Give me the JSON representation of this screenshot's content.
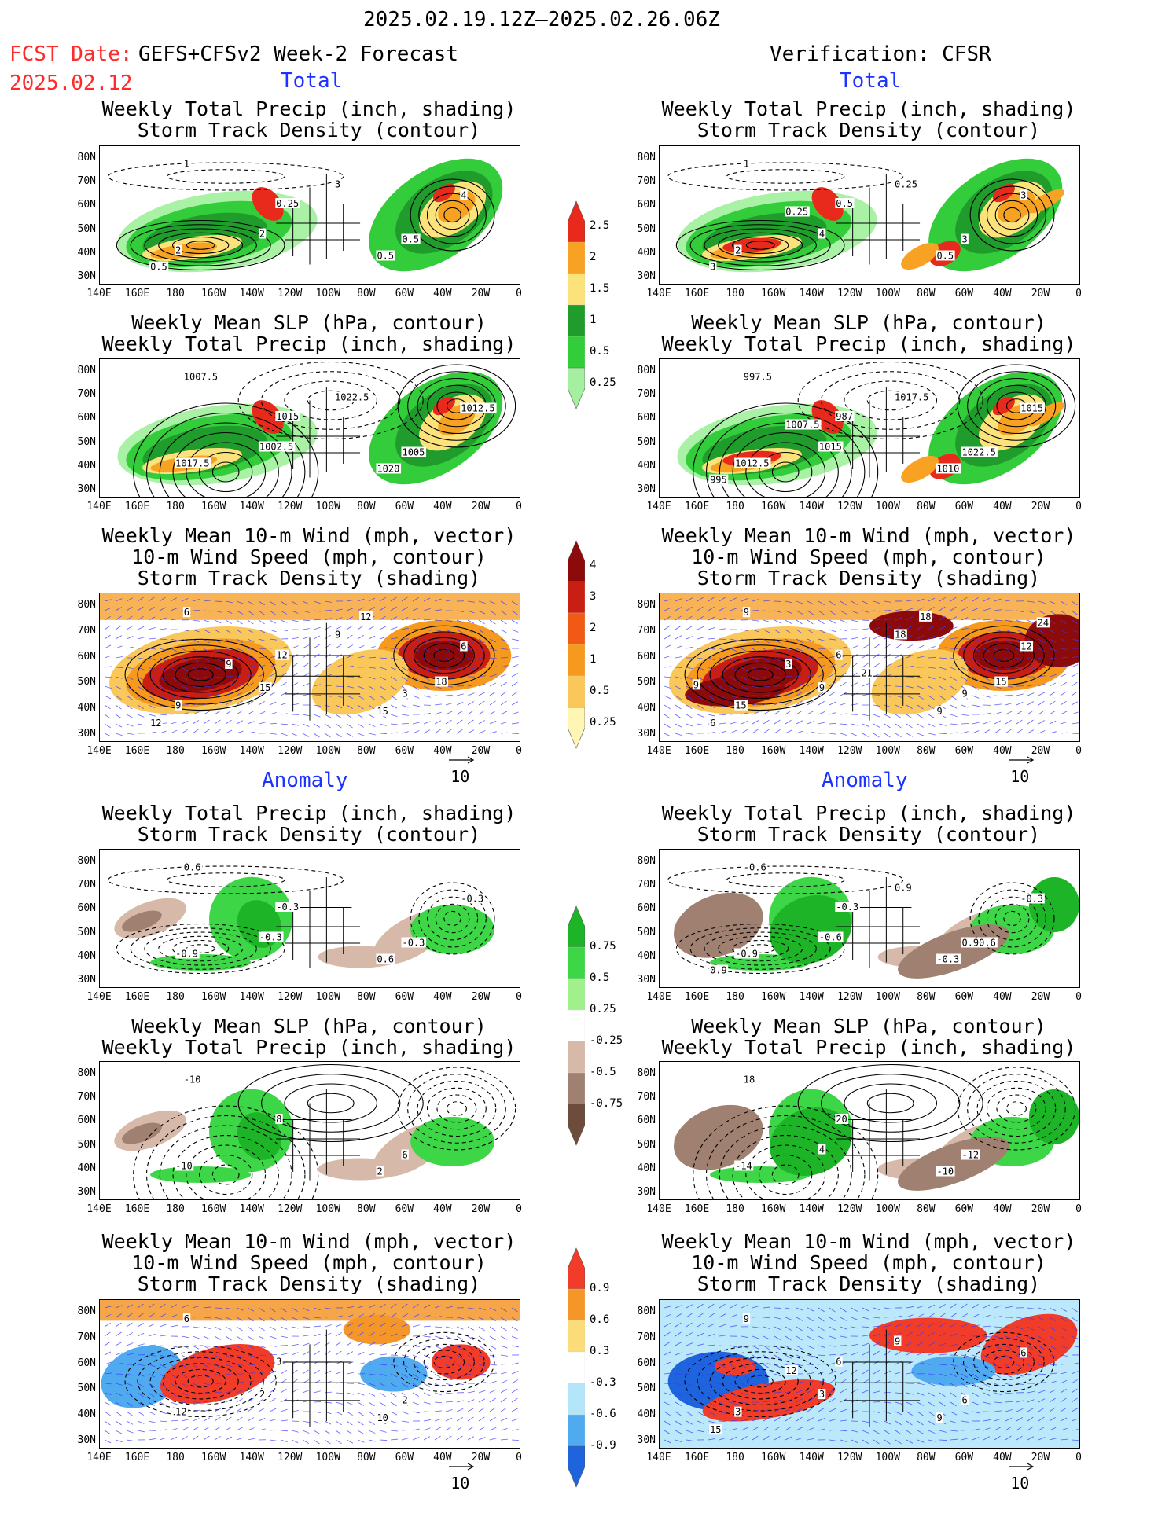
{
  "header": {
    "date_range": "2025.02.19.12Z–2025.02.26.06Z",
    "fcst_label": "FCST Date:",
    "fcst_model": "GEFS+CFSv2 Week-2 Forecast",
    "fcst_date": "2025.02.12",
    "verification": "Verification: CFSR"
  },
  "sections": {
    "total": "Total",
    "anomaly": "Anomaly"
  },
  "titles": {
    "precip_l1": "Weekly Total Precip (inch, shading)",
    "precip_l2": "Storm Track Density (contour)",
    "slp_l1": "Weekly Mean SLP (hPa, contour)",
    "slp_l2": "Weekly Total Precip (inch, shading)",
    "wind_l1": "Weekly Mean 10-m Wind (mph, vector)",
    "wind_l2": "10-m Wind Speed (mph, contour)",
    "wind_l3": "Storm Track Density (shading)"
  },
  "axes": {
    "lat_ticks": [
      "80N",
      "70N",
      "60N",
      "50N",
      "40N",
      "30N"
    ],
    "lon_ticks": [
      "140E",
      "160E",
      "180",
      "160W",
      "140W",
      "120W",
      "100W",
      "80W",
      "60W",
      "40W",
      "20W",
      "0"
    ]
  },
  "vector_ref": "10",
  "colorbars": {
    "precip_total": {
      "labels": [
        "2.5",
        "2",
        "1.5",
        "1",
        "0.5",
        "0.25"
      ],
      "colors": [
        "#e82a1c",
        "#f7a223",
        "#fbe27a",
        "#1f9c2c",
        "#33cc3a",
        "#a4f0a0"
      ]
    },
    "density_total": {
      "labels": [
        "4",
        "3",
        "2",
        "1",
        "0.5",
        "0.25"
      ],
      "colors": [
        "#8c0a0a",
        "#c81e14",
        "#f05a14",
        "#f59a1e",
        "#fac85a",
        "#fff5b4"
      ]
    },
    "precip_anom": {
      "labels": [
        "0.75",
        "0.5",
        "0.25",
        "-0.25",
        "-0.5",
        "-0.75"
      ],
      "colors": [
        "#1eb428",
        "#3cd646",
        "#a0f08c",
        "#ffffff",
        "#d7b9aa",
        "#a08070",
        "#6e4c3c"
      ]
    },
    "density_anom": {
      "labels": [
        "0.9",
        "0.6",
        "0.3",
        "-0.3",
        "-0.6",
        "-0.9"
      ],
      "colors": [
        "#f03c28",
        "#f59628",
        "#fadc78",
        "#ffffff",
        "#b4e6fa",
        "#50aaf0",
        "#1e64dc"
      ]
    }
  },
  "contour_labels": {
    "f_precip": [
      "1",
      "0.25",
      "0.5",
      "2",
      "0.5",
      "2",
      "4",
      "3",
      "0.5"
    ],
    "f_slp": [
      "1007.5",
      "1015",
      "1005",
      "1017.5",
      "1020",
      "1002.5",
      "1012.5",
      "1022.5"
    ],
    "f_wind": [
      "6",
      "12",
      "3",
      "9",
      "15",
      "15",
      "6",
      "9",
      "12",
      "9",
      "18",
      "12"
    ],
    "v_precip": [
      "1",
      "0.5",
      "3",
      "2",
      "0.5",
      "4",
      "3",
      "0.25",
      "3",
      "0.25"
    ],
    "v_slp": [
      "997.5",
      "987",
      "1022.5",
      "1012.5",
      "1010",
      "1015",
      "1015",
      "1017.5",
      "995",
      "1007.5"
    ],
    "v_wind": [
      "9",
      "6",
      "9",
      "15",
      "9",
      "9",
      "12",
      "18",
      "6",
      "3",
      "15",
      "18",
      "21",
      "24",
      "9"
    ],
    "fa_precip": [
      "0.6",
      "-0.3",
      "-0.3",
      "-0.9",
      "0.6",
      "-0.3",
      "-0.3"
    ],
    "fa_slp": [
      "-10",
      "8",
      "6",
      "-10",
      "2"
    ],
    "fa_wind": [
      "6",
      "3",
      "2",
      "12",
      "10",
      "2"
    ],
    "va_precip": [
      "-0.6",
      "-0.3",
      "0.90.6",
      "-0.9",
      "-0.3",
      "-0.6",
      "-0.3",
      "0.9",
      "0.9"
    ],
    "va_slp": [
      "18",
      "20",
      "-12",
      "-14",
      "-10",
      "4"
    ],
    "va_wind": [
      "9",
      "6",
      "6",
      "3",
      "9",
      "3",
      "6",
      "9",
      "15",
      "12"
    ]
  }
}
